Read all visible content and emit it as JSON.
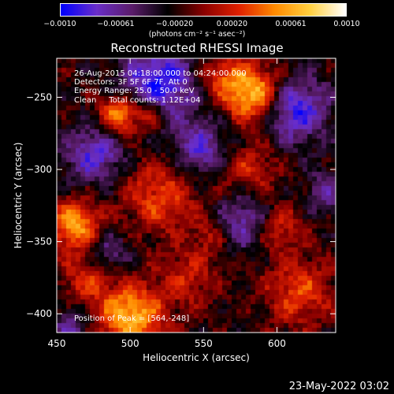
{
  "chart_data": {
    "type": "heatmap",
    "title": "Reconstructed RHESSI Image",
    "xlabel": "Heliocentric X (arcsec)",
    "ylabel": "Heliocentric Y (arcsec)",
    "xlim": [
      450,
      640
    ],
    "ylim": [
      -413,
      -223
    ],
    "x_ticks": [
      450,
      500,
      550,
      600
    ],
    "x_tick_labels": [
      "450",
      "500",
      "550",
      "600"
    ],
    "y_ticks": [
      -250,
      -300,
      -350,
      -400
    ],
    "y_tick_labels": [
      "−250",
      "−300",
      "−350",
      "−400"
    ],
    "colorbar": {
      "min": -0.001,
      "max": 0.001,
      "tick_labels": [
        "−0.0010",
        "−0.00061",
        "−0.00020",
        "0.00020",
        "0.00061",
        "0.0010"
      ],
      "tick_values": [
        -0.001,
        -0.00061,
        -0.0002,
        0.0002,
        0.00061,
        0.001
      ],
      "units_label": "(photons cm⁻² s⁻¹ asec⁻²)",
      "colors": [
        "#0000ff",
        "#6a2ec8",
        "#5a1c6a",
        "#000000",
        "#8a0000",
        "#e02000",
        "#ff8a00",
        "#ffd040",
        "#ffffff"
      ]
    },
    "annotations": [
      "26-Aug-2015 04:18:00.000 to 04:24:00.000",
      "Detectors: 3F 5F 6F 7F, Att 0",
      "Energy Range: 25.0 - 50.0 keV",
      "Clean     Total counts: 1.12E+04"
    ],
    "peak_label": "Position of Peak = [564,-248]",
    "peak": [
      564,
      -248
    ],
    "bright_sources": [
      {
        "x": 583,
        "y": -247,
        "sigma": 14,
        "value": 0.00095
      },
      {
        "x": 493,
        "y": -262,
        "sigma": 10,
        "value": 0.0008
      },
      {
        "x": 514,
        "y": -262,
        "sigma": 7,
        "value": 0.0005
      },
      {
        "x": 462,
        "y": -338,
        "sigma": 12,
        "value": 0.0008
      },
      {
        "x": 500,
        "y": -402,
        "sigma": 16,
        "value": 0.00085
      },
      {
        "x": 520,
        "y": -318,
        "sigma": 18,
        "value": 0.0005
      },
      {
        "x": 580,
        "y": -300,
        "sigma": 14,
        "value": 0.0004
      },
      {
        "x": 600,
        "y": -340,
        "sigma": 12,
        "value": 0.00045
      },
      {
        "x": 615,
        "y": -385,
        "sigma": 16,
        "value": 0.0005
      },
      {
        "x": 540,
        "y": -375,
        "sigma": 14,
        "value": 0.00035
      },
      {
        "x": 470,
        "y": -375,
        "sigma": 12,
        "value": 0.0004
      },
      {
        "x": 560,
        "y": -235,
        "sigma": 10,
        "value": 0.0004
      },
      {
        "x": 555,
        "y": -345,
        "sigma": 10,
        "value": 0.0003
      }
    ],
    "dark_sources": [
      {
        "x": 520,
        "y": -240,
        "sigma": 18,
        "value": -0.00075
      },
      {
        "x": 612,
        "y": -258,
        "sigma": 16,
        "value": -0.0007
      },
      {
        "x": 476,
        "y": -290,
        "sigma": 14,
        "value": -0.0006
      },
      {
        "x": 548,
        "y": -286,
        "sigma": 14,
        "value": -0.00055
      },
      {
        "x": 578,
        "y": -336,
        "sigma": 14,
        "value": -0.00055
      },
      {
        "x": 485,
        "y": -358,
        "sigma": 10,
        "value": -0.0004
      },
      {
        "x": 633,
        "y": -316,
        "sigma": 10,
        "value": -0.0004
      },
      {
        "x": 460,
        "y": -410,
        "sigma": 10,
        "value": -0.0004
      }
    ]
  },
  "footer": {
    "timestamp": "23-May-2022 03:02"
  }
}
